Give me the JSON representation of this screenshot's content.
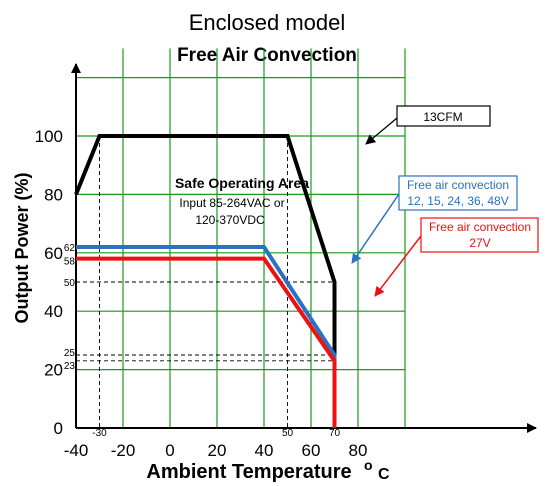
{
  "chart_data": {
    "type": "line",
    "title": "Enclosed model",
    "subtitle": "Free Air Convection",
    "xlabel": "Ambient Temperature",
    "xlabel_unit": "o C",
    "ylabel": "Output Power (%)",
    "xlim": [
      -40,
      100
    ],
    "ylim": [
      0,
      130
    ],
    "x_ticks": [
      -40,
      -20,
      0,
      20,
      40,
      60,
      80
    ],
    "y_ticks": [
      0,
      20,
      40,
      60,
      80,
      100
    ],
    "grid": true,
    "grid_color": "#1a9a1a",
    "x_minor_labels": [
      "-30",
      "50",
      "70"
    ],
    "y_minor_labels": [
      "62",
      "58",
      "50",
      "25",
      "23"
    ],
    "series": [
      {
        "name": "13CFM",
        "color": "#000000",
        "x": [
          -40,
          -30,
          40,
          50,
          70,
          70
        ],
        "y": [
          80,
          100,
          100,
          100,
          50,
          0
        ]
      },
      {
        "name": "Free air convection 12, 15, 24, 36, 48V",
        "color": "#2a72c2",
        "x": [
          -40,
          40,
          70,
          70
        ],
        "y": [
          62,
          62,
          25,
          0
        ]
      },
      {
        "name": "Free air convection 27V",
        "color": "#ee1111",
        "x": [
          -40,
          40,
          70,
          70
        ],
        "y": [
          58,
          58,
          23,
          0
        ]
      }
    ],
    "annotations": {
      "soa_title": "Safe Operating Area",
      "soa_line1": "Input 85-264VAC or",
      "soa_line2": "120-370VDC",
      "callout_13cfm": "13CFM",
      "callout_blue_1": "Free air convection",
      "callout_blue_2": "12, 15, 24, 36, 48V",
      "callout_red_1": "Free air convection",
      "callout_red_2": "27V"
    }
  }
}
